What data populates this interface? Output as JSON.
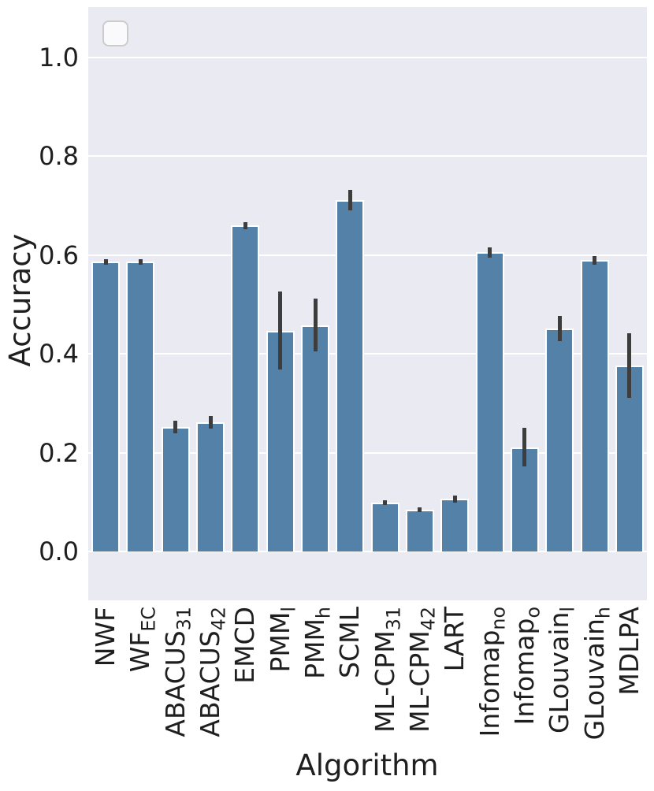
{
  "chart_data": {
    "type": "bar",
    "title": "",
    "xlabel": "Algorithm",
    "ylabel": "Accuracy",
    "ylim": [
      -0.1,
      1.1
    ],
    "yticks": [
      "0.0",
      "0.2",
      "0.4",
      "0.6",
      "0.8",
      "1.0"
    ],
    "grid": true,
    "legend": {
      "position": "upper left",
      "entries": []
    },
    "categories": [
      {
        "base": "NWF",
        "sub": ""
      },
      {
        "base": "WF",
        "sub": "EC"
      },
      {
        "base": "ABACUS",
        "sub": "31"
      },
      {
        "base": "ABACUS",
        "sub": "42"
      },
      {
        "base": "EMCD",
        "sub": ""
      },
      {
        "base": "PMM",
        "sub": "l"
      },
      {
        "base": "PMM",
        "sub": "h"
      },
      {
        "base": "SCML",
        "sub": ""
      },
      {
        "base": "ML-CPM",
        "sub": "31"
      },
      {
        "base": "ML-CPM",
        "sub": "42"
      },
      {
        "base": "LART",
        "sub": ""
      },
      {
        "base": "Infomap",
        "sub": "no"
      },
      {
        "base": "Infomap",
        "sub": "o"
      },
      {
        "base": "GLouvain",
        "sub": "l"
      },
      {
        "base": "GLouvain",
        "sub": "h"
      },
      {
        "base": "MDLPA",
        "sub": ""
      }
    ],
    "values": [
      0.586,
      0.586,
      0.252,
      0.261,
      0.659,
      0.447,
      0.458,
      0.711,
      0.099,
      0.085,
      0.106,
      0.605,
      0.211,
      0.451,
      0.589,
      0.376
    ],
    "errors": [
      0.006,
      0.006,
      0.013,
      0.013,
      0.007,
      0.079,
      0.053,
      0.021,
      0.005,
      0.004,
      0.007,
      0.01,
      0.039,
      0.026,
      0.009,
      0.065
    ],
    "colors": {
      "bar": "#5381A7",
      "bar_edge": "#FFFFFF",
      "error": "#3D3D3D",
      "plot_background": "#EAEAF2",
      "figure_background": "#FFFFFF",
      "gridline": "#FFFFFF",
      "text": "#1F1F1F",
      "legend_border": "#CCCCCC"
    }
  }
}
